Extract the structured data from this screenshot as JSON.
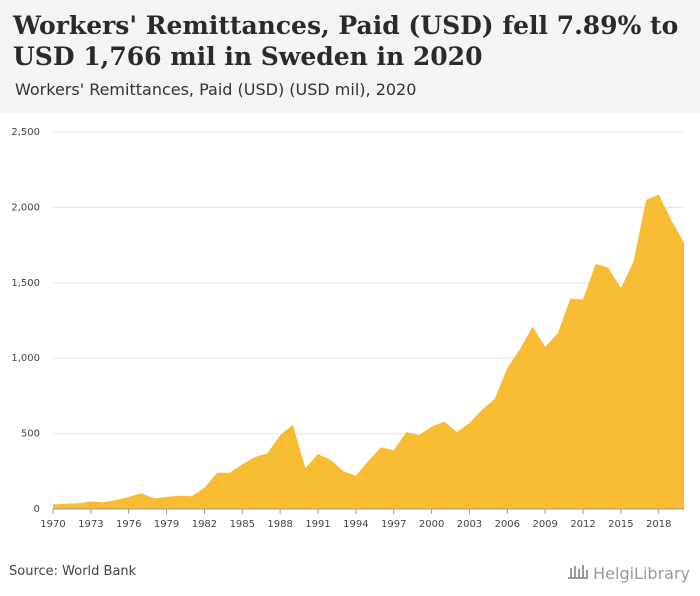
{
  "header": {
    "title": "Workers' Remittances, Paid (USD) fell 7.89% to USD 1,766 mil in Sweden in 2020",
    "subtitle": "Workers' Remittances, Paid (USD) (USD mil), 2020"
  },
  "footer": {
    "source": "Source: World Bank",
    "brand": "HelgiLibrary",
    "brand_icon": "library-building-icon"
  },
  "colors": {
    "area": "#f8bc32",
    "grid": "#e6e6e6",
    "header_bg": "#f4f4f4"
  },
  "chart_data": {
    "type": "area",
    "title": "Workers' Remittances, Paid (USD) fell 7.89% to USD 1,766 mil in Sweden in 2020",
    "subtitle": "Workers' Remittances, Paid (USD) (USD mil), 2020",
    "xlabel": "",
    "ylabel": "",
    "ylim": [
      0,
      2500
    ],
    "xlim": [
      1970,
      2020
    ],
    "grid": true,
    "legend": "none",
    "y_ticks": [
      0,
      500,
      1000,
      1500,
      2000,
      2500
    ],
    "y_tick_labels": [
      "0",
      "500",
      "1,000",
      "1,500",
      "2,000",
      "2,500"
    ],
    "x_ticks": [
      1970,
      1973,
      1976,
      1979,
      1982,
      1985,
      1988,
      1991,
      1994,
      1997,
      2000,
      2003,
      2006,
      2009,
      2012,
      2015,
      2018
    ],
    "x": [
      1970,
      1971,
      1972,
      1973,
      1974,
      1975,
      1976,
      1977,
      1978,
      1979,
      1980,
      1981,
      1982,
      1983,
      1984,
      1985,
      1986,
      1987,
      1988,
      1989,
      1990,
      1991,
      1992,
      1993,
      1994,
      1995,
      1996,
      1997,
      1998,
      1999,
      2000,
      2001,
      2002,
      2003,
      2004,
      2005,
      2006,
      2007,
      2008,
      2009,
      2010,
      2011,
      2012,
      2013,
      2014,
      2015,
      2016,
      2017,
      2018,
      2019,
      2020
    ],
    "series": [
      {
        "values": [
          30,
          35,
          38,
          50,
          45,
          60,
          80,
          105,
          70,
          80,
          88,
          85,
          140,
          240,
          240,
          295,
          345,
          370,
          490,
          560,
          270,
          365,
          325,
          250,
          220,
          320,
          410,
          390,
          510,
          490,
          545,
          580,
          510,
          570,
          660,
          730,
          935,
          1060,
          1210,
          1075,
          1165,
          1395,
          1390,
          1625,
          1600,
          1465,
          1640,
          2050,
          2085,
          1915,
          1766
        ]
      }
    ]
  }
}
